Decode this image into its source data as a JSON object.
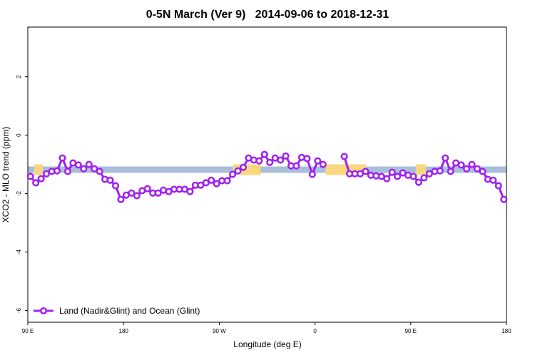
{
  "chart_data": {
    "type": "line",
    "title": "0-5N March (Ver 9)   2014-09-06 to 2018-12-31",
    "x_label": "Longitude (deg E)",
    "y_label": "XCO2 - MLO trend (ppm)",
    "xlim": [
      90,
      540
    ],
    "ylim": [
      -6.4,
      3.7
    ],
    "xticks": [
      {
        "value": 90,
        "label": "90 E"
      },
      180,
      {
        "value": 270,
        "label": "90 W"
      },
      {
        "value": 360,
        "label": "0"
      },
      {
        "value": 450,
        "label": "90 E"
      },
      180.0001
    ],
    "yticks": [
      -6,
      -4,
      -2,
      0,
      2
    ],
    "band": [
      -1.29,
      -1.07
    ],
    "band_color": "#a9bfd9",
    "land_spans": [
      [
        96,
        104
      ],
      [
        283,
        309
      ],
      [
        370,
        408
      ],
      [
        455,
        464
      ]
    ],
    "land_color": "#f9d77f",
    "legend_position": "bottom-left",
    "series": [
      {
        "name": "Land (Nadir&Glint) and Ocean (Glint)",
        "color": "#a020f0",
        "x": [
          92.5,
          97.5,
          102.5,
          107.5,
          112.5,
          117.5,
          122.5,
          127.5,
          132.5,
          137.5,
          142.5,
          147.5,
          152.5,
          157.5,
          162.5,
          167.5,
          172.5,
          177.5,
          182.5,
          187.5,
          192.5,
          197.5,
          202.5,
          207.5,
          212.5,
          217.5,
          222.5,
          227.5,
          232.5,
          237.5,
          242.5,
          247.5,
          252.5,
          257.5,
          262.5,
          267.5,
          272.5,
          277.5,
          282.5,
          287.5,
          292.5,
          297.5,
          302.5,
          307.5,
          312.5,
          317.5,
          322.5,
          327.5,
          332.5,
          337.5,
          342.5,
          347.5,
          352.5,
          357.5,
          362.5,
          367.5,
          372.5,
          377.5,
          382.5,
          387.5,
          392.5,
          397.5,
          402.5,
          407.5,
          412.5,
          417.5,
          422.5,
          427.5,
          432.5,
          437.5,
          442.5,
          447.5,
          452.5,
          457.5,
          462.5,
          467.5,
          472.5,
          477.5,
          482.5,
          487.5,
          492.5,
          497.5,
          502.5,
          507.5,
          512.5,
          517.5,
          522.5,
          527.5,
          532.5,
          537.5
        ],
        "values": [
          -1.41,
          -1.63,
          -1.49,
          -1.32,
          -1.24,
          -1.22,
          -0.78,
          -1.24,
          -0.95,
          -1.02,
          -1.15,
          -1.0,
          -1.15,
          -1.24,
          -1.51,
          -1.54,
          -1.73,
          -2.2,
          -2.05,
          -1.98,
          -2.07,
          -1.9,
          -1.83,
          -1.98,
          -1.98,
          -1.88,
          -1.93,
          -1.85,
          -1.85,
          -1.85,
          -1.93,
          -1.71,
          -1.71,
          -1.63,
          -1.54,
          -1.66,
          -1.56,
          -1.56,
          -1.34,
          -1.22,
          -1.1,
          -0.78,
          -0.85,
          -0.88,
          -0.66,
          -0.93,
          -0.78,
          -0.85,
          -0.71,
          -1.05,
          -1.05,
          -0.76,
          -0.8,
          -1.34,
          -0.88,
          -1.0,
          null,
          null,
          null,
          -0.73,
          -1.32,
          -1.32,
          -1.32,
          -1.24,
          -1.37,
          -1.39,
          -1.41,
          -1.49,
          -1.27,
          -1.41,
          -1.29,
          -1.37,
          -1.41,
          -1.61,
          -1.46,
          -1.32,
          -1.24,
          -1.22,
          -0.78,
          -1.24,
          -0.95,
          -1.02,
          -1.15,
          -1.0,
          -1.15,
          -1.24,
          -1.51,
          -1.54,
          -1.73,
          -2.2
        ]
      }
    ]
  }
}
